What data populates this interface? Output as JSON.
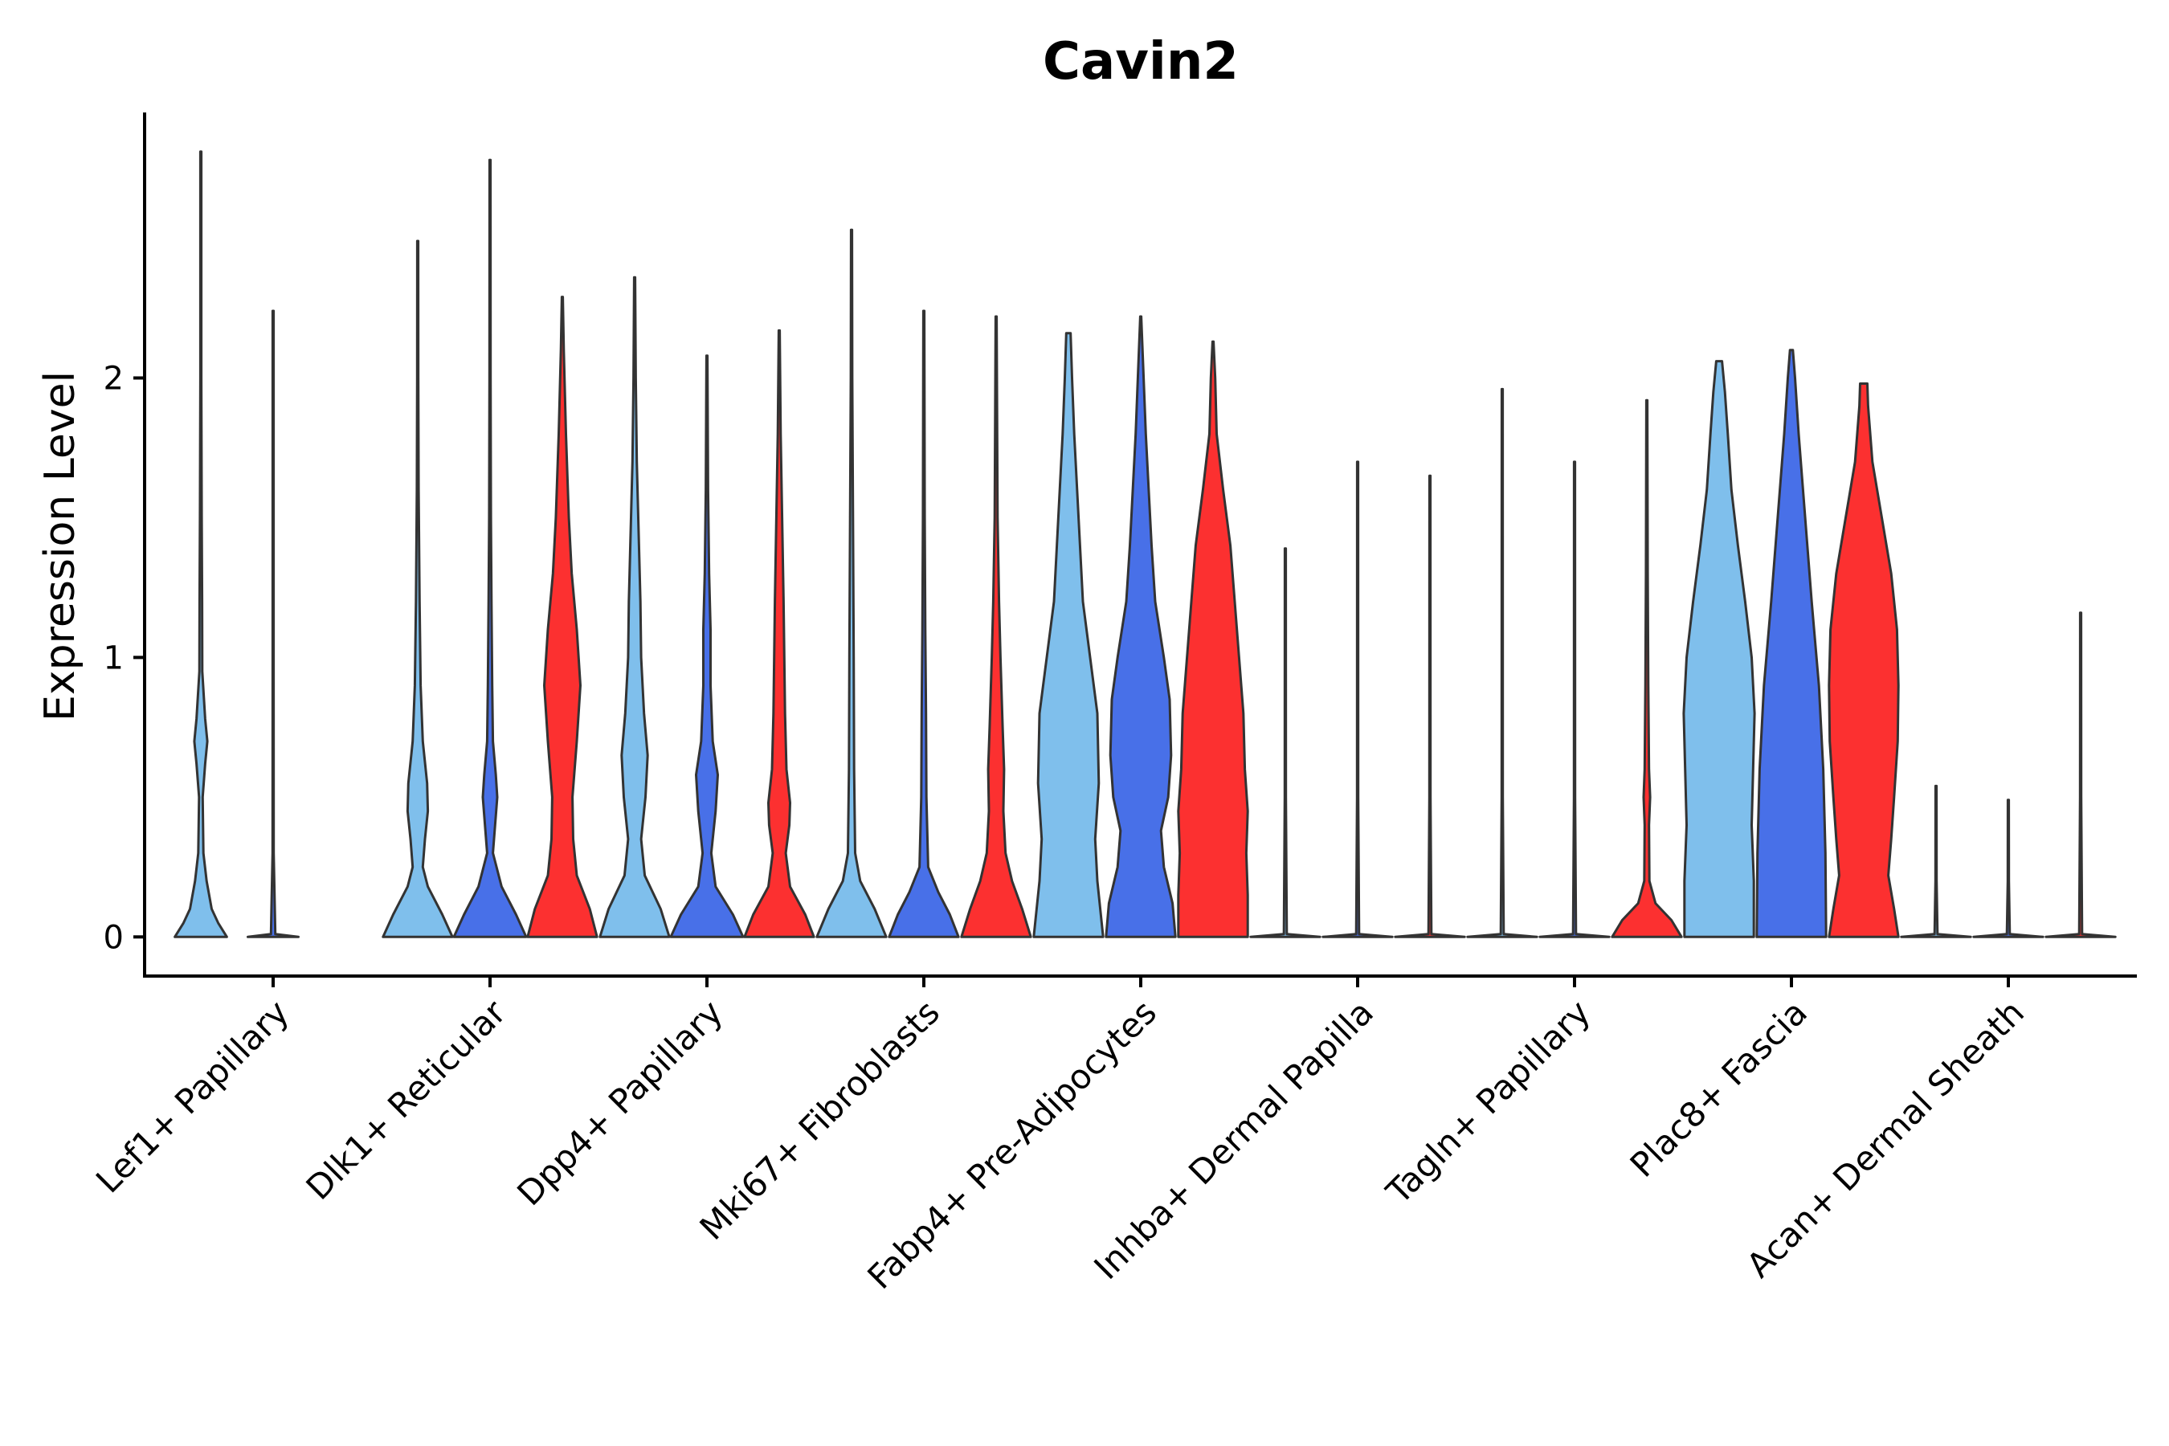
{
  "chart_data": {
    "type": "violin",
    "title": "Cavin2",
    "xlabel": "",
    "ylabel": "Expression Level",
    "ylim": [
      -0.14,
      2.95
    ],
    "yticks": [
      0,
      1,
      2
    ],
    "ytick_labels": [
      "0",
      "1",
      "2"
    ],
    "grid": false,
    "legend": "none",
    "categories": [
      "Lef1+ Papillary",
      "Dlk1+ Reticular",
      "Dpp4+ Papillary",
      "Mki67+ Fibroblasts",
      "Fabp4+ Pre-Adipocytes",
      "Inhba+ Dermal Papilla",
      "Tagln+ Papillary",
      "Plac8+ Fascia",
      "Acan+ Dermal Sheath"
    ],
    "series_colors": [
      "#7fbfec",
      "#4870e8",
      "#fc3030"
    ],
    "violins": [
      {
        "category": 0,
        "series": 0,
        "max": 2.81,
        "profile": [
          [
            0,
            0.36
          ],
          [
            0.05,
            0.24
          ],
          [
            0.1,
            0.15
          ],
          [
            0.2,
            0.08
          ],
          [
            0.3,
            0.035
          ],
          [
            0.5,
            0.025
          ],
          [
            0.62,
            0.06
          ],
          [
            0.7,
            0.09
          ],
          [
            0.78,
            0.06
          ],
          [
            0.95,
            0.02
          ],
          [
            1.2,
            0.018
          ],
          [
            1.5,
            0.012
          ],
          [
            2.0,
            0.007
          ],
          [
            2.5,
            0.004
          ],
          [
            2.81,
            0.0
          ]
        ]
      },
      {
        "category": 0,
        "series": 1,
        "max": 2.24,
        "profile": [
          [
            0,
            0.35
          ],
          [
            0.01,
            0.03
          ],
          [
            0.3,
            0.008
          ],
          [
            1.0,
            0.006
          ],
          [
            2.24,
            0.0
          ]
        ]
      },
      {
        "category": 1,
        "series": 0,
        "max": 2.49,
        "profile": [
          [
            0,
            0.48
          ],
          [
            0.08,
            0.34
          ],
          [
            0.18,
            0.14
          ],
          [
            0.25,
            0.07
          ],
          [
            0.35,
            0.1
          ],
          [
            0.45,
            0.14
          ],
          [
            0.55,
            0.13
          ],
          [
            0.7,
            0.07
          ],
          [
            0.9,
            0.04
          ],
          [
            1.2,
            0.025
          ],
          [
            1.6,
            0.012
          ],
          [
            2.0,
            0.008
          ],
          [
            2.49,
            0.0
          ]
        ]
      },
      {
        "category": 1,
        "series": 1,
        "max": 2.78,
        "profile": [
          [
            0,
            0.5
          ],
          [
            0.08,
            0.36
          ],
          [
            0.18,
            0.16
          ],
          [
            0.3,
            0.04
          ],
          [
            0.4,
            0.07
          ],
          [
            0.5,
            0.1
          ],
          [
            0.58,
            0.08
          ],
          [
            0.7,
            0.04
          ],
          [
            0.9,
            0.03
          ],
          [
            1.2,
            0.02
          ],
          [
            1.5,
            0.012
          ],
          [
            2.0,
            0.008
          ],
          [
            2.78,
            0.0
          ]
        ]
      },
      {
        "category": 1,
        "series": 2,
        "max": 2.29,
        "profile": [
          [
            0,
            0.48
          ],
          [
            0.1,
            0.38
          ],
          [
            0.22,
            0.2
          ],
          [
            0.35,
            0.15
          ],
          [
            0.5,
            0.14
          ],
          [
            0.7,
            0.2
          ],
          [
            0.9,
            0.25
          ],
          [
            1.1,
            0.2
          ],
          [
            1.3,
            0.13
          ],
          [
            1.5,
            0.09
          ],
          [
            1.8,
            0.05
          ],
          [
            2.1,
            0.02
          ],
          [
            2.29,
            0.0
          ]
        ]
      },
      {
        "category": 2,
        "series": 0,
        "max": 2.36,
        "profile": [
          [
            0,
            0.48
          ],
          [
            0.1,
            0.36
          ],
          [
            0.22,
            0.14
          ],
          [
            0.35,
            0.09
          ],
          [
            0.5,
            0.15
          ],
          [
            0.65,
            0.18
          ],
          [
            0.8,
            0.13
          ],
          [
            1.0,
            0.09
          ],
          [
            1.2,
            0.08
          ],
          [
            1.4,
            0.06
          ],
          [
            1.7,
            0.03
          ],
          [
            2.0,
            0.015
          ],
          [
            2.36,
            0.0
          ]
        ]
      },
      {
        "category": 2,
        "series": 1,
        "max": 2.08,
        "profile": [
          [
            0,
            0.5
          ],
          [
            0.08,
            0.36
          ],
          [
            0.18,
            0.12
          ],
          [
            0.3,
            0.06
          ],
          [
            0.45,
            0.12
          ],
          [
            0.58,
            0.15
          ],
          [
            0.7,
            0.08
          ],
          [
            0.9,
            0.05
          ],
          [
            1.1,
            0.05
          ],
          [
            1.3,
            0.03
          ],
          [
            1.6,
            0.015
          ],
          [
            2.08,
            0.0
          ]
        ]
      },
      {
        "category": 2,
        "series": 2,
        "max": 2.17,
        "profile": [
          [
            0,
            0.48
          ],
          [
            0.08,
            0.36
          ],
          [
            0.18,
            0.15
          ],
          [
            0.3,
            0.09
          ],
          [
            0.4,
            0.14
          ],
          [
            0.48,
            0.15
          ],
          [
            0.6,
            0.1
          ],
          [
            0.8,
            0.08
          ],
          [
            1.0,
            0.07
          ],
          [
            1.2,
            0.06
          ],
          [
            1.5,
            0.04
          ],
          [
            1.8,
            0.02
          ],
          [
            2.17,
            0.0
          ]
        ]
      },
      {
        "category": 3,
        "series": 0,
        "max": 2.53,
        "profile": [
          [
            0,
            0.48
          ],
          [
            0.1,
            0.32
          ],
          [
            0.2,
            0.12
          ],
          [
            0.3,
            0.05
          ],
          [
            0.6,
            0.035
          ],
          [
            1.0,
            0.03
          ],
          [
            1.5,
            0.02
          ],
          [
            2.0,
            0.01
          ],
          [
            2.53,
            0.0
          ]
        ]
      },
      {
        "category": 3,
        "series": 1,
        "max": 2.24,
        "profile": [
          [
            0,
            0.48
          ],
          [
            0.08,
            0.36
          ],
          [
            0.16,
            0.2
          ],
          [
            0.25,
            0.06
          ],
          [
            0.5,
            0.035
          ],
          [
            0.8,
            0.03
          ],
          [
            1.1,
            0.02
          ],
          [
            1.5,
            0.012
          ],
          [
            2.24,
            0.0
          ]
        ]
      },
      {
        "category": 3,
        "series": 2,
        "max": 2.22,
        "profile": [
          [
            0,
            0.48
          ],
          [
            0.1,
            0.36
          ],
          [
            0.2,
            0.22
          ],
          [
            0.3,
            0.13
          ],
          [
            0.45,
            0.1
          ],
          [
            0.6,
            0.11
          ],
          [
            0.75,
            0.09
          ],
          [
            1.0,
            0.06
          ],
          [
            1.2,
            0.04
          ],
          [
            1.5,
            0.02
          ],
          [
            2.22,
            0.0
          ]
        ]
      },
      {
        "category": 4,
        "series": 0,
        "max": 2.16,
        "profile": [
          [
            0,
            0.48
          ],
          [
            0.1,
            0.44
          ],
          [
            0.2,
            0.4
          ],
          [
            0.35,
            0.37
          ],
          [
            0.55,
            0.42
          ],
          [
            0.8,
            0.4
          ],
          [
            1.0,
            0.3
          ],
          [
            1.2,
            0.2
          ],
          [
            1.4,
            0.16
          ],
          [
            1.6,
            0.12
          ],
          [
            1.8,
            0.08
          ],
          [
            2.0,
            0.05
          ],
          [
            2.16,
            0.03
          ]
        ]
      },
      {
        "category": 4,
        "series": 1,
        "max": 2.22,
        "profile": [
          [
            0,
            0.48
          ],
          [
            0.12,
            0.44
          ],
          [
            0.25,
            0.32
          ],
          [
            0.38,
            0.28
          ],
          [
            0.5,
            0.38
          ],
          [
            0.65,
            0.42
          ],
          [
            0.85,
            0.4
          ],
          [
            1.0,
            0.32
          ],
          [
            1.2,
            0.2
          ],
          [
            1.4,
            0.15
          ],
          [
            1.6,
            0.11
          ],
          [
            1.8,
            0.07
          ],
          [
            2.0,
            0.04
          ],
          [
            2.22,
            0.0
          ]
        ]
      },
      {
        "category": 4,
        "series": 2,
        "max": 2.13,
        "profile": [
          [
            0,
            0.48
          ],
          [
            0.15,
            0.48
          ],
          [
            0.3,
            0.46
          ],
          [
            0.45,
            0.48
          ],
          [
            0.6,
            0.44
          ],
          [
            0.8,
            0.42
          ],
          [
            1.0,
            0.36
          ],
          [
            1.2,
            0.3
          ],
          [
            1.4,
            0.24
          ],
          [
            1.6,
            0.14
          ],
          [
            1.8,
            0.05
          ],
          [
            2.0,
            0.03
          ],
          [
            2.13,
            0.0
          ]
        ]
      },
      {
        "category": 5,
        "series": 0,
        "max": 1.39,
        "profile": [
          [
            0,
            0.48
          ],
          [
            0.01,
            0.02
          ],
          [
            0.5,
            0.008
          ],
          [
            1.39,
            0.0
          ]
        ]
      },
      {
        "category": 5,
        "series": 1,
        "max": 1.7,
        "profile": [
          [
            0,
            0.48
          ],
          [
            0.01,
            0.02
          ],
          [
            0.5,
            0.008
          ],
          [
            1.7,
            0.0
          ]
        ]
      },
      {
        "category": 5,
        "series": 2,
        "max": 1.65,
        "profile": [
          [
            0,
            0.48
          ],
          [
            0.01,
            0.02
          ],
          [
            0.5,
            0.008
          ],
          [
            1.65,
            0.0
          ]
        ]
      },
      {
        "category": 6,
        "series": 0,
        "max": 1.96,
        "profile": [
          [
            0,
            0.48
          ],
          [
            0.01,
            0.02
          ],
          [
            0.5,
            0.008
          ],
          [
            1.96,
            0.0
          ]
        ]
      },
      {
        "category": 6,
        "series": 1,
        "max": 1.7,
        "profile": [
          [
            0,
            0.48
          ],
          [
            0.01,
            0.02
          ],
          [
            0.5,
            0.008
          ],
          [
            1.7,
            0.0
          ]
        ]
      },
      {
        "category": 6,
        "series": 2,
        "max": 1.92,
        "profile": [
          [
            0,
            0.48
          ],
          [
            0.06,
            0.34
          ],
          [
            0.12,
            0.12
          ],
          [
            0.2,
            0.035
          ],
          [
            0.4,
            0.03
          ],
          [
            0.5,
            0.045
          ],
          [
            0.6,
            0.03
          ],
          [
            0.9,
            0.02
          ],
          [
            1.3,
            0.012
          ],
          [
            1.92,
            0.0
          ]
        ]
      },
      {
        "category": 7,
        "series": 0,
        "max": 2.06,
        "profile": [
          [
            0,
            0.48
          ],
          [
            0.2,
            0.48
          ],
          [
            0.4,
            0.45
          ],
          [
            0.6,
            0.47
          ],
          [
            0.8,
            0.49
          ],
          [
            1.0,
            0.45
          ],
          [
            1.2,
            0.36
          ],
          [
            1.4,
            0.26
          ],
          [
            1.6,
            0.17
          ],
          [
            1.8,
            0.12
          ],
          [
            1.95,
            0.08
          ],
          [
            2.06,
            0.04
          ]
        ]
      },
      {
        "category": 7,
        "series": 1,
        "max": 2.1,
        "profile": [
          [
            0,
            0.48
          ],
          [
            0.3,
            0.47
          ],
          [
            0.6,
            0.44
          ],
          [
            0.9,
            0.38
          ],
          [
            1.2,
            0.28
          ],
          [
            1.4,
            0.22
          ],
          [
            1.6,
            0.16
          ],
          [
            1.8,
            0.1
          ],
          [
            2.0,
            0.05
          ],
          [
            2.1,
            0.02
          ]
        ]
      },
      {
        "category": 7,
        "series": 2,
        "max": 1.98,
        "profile": [
          [
            0,
            0.48
          ],
          [
            0.1,
            0.42
          ],
          [
            0.22,
            0.34
          ],
          [
            0.35,
            0.38
          ],
          [
            0.5,
            0.42
          ],
          [
            0.7,
            0.47
          ],
          [
            0.9,
            0.48
          ],
          [
            1.1,
            0.46
          ],
          [
            1.3,
            0.38
          ],
          [
            1.5,
            0.25
          ],
          [
            1.7,
            0.12
          ],
          [
            1.9,
            0.06
          ],
          [
            1.98,
            0.05
          ]
        ]
      },
      {
        "category": 8,
        "series": 0,
        "max": 0.54,
        "profile": [
          [
            0,
            0.48
          ],
          [
            0.01,
            0.02
          ],
          [
            0.2,
            0.008
          ],
          [
            0.54,
            0.0
          ]
        ]
      },
      {
        "category": 8,
        "series": 1,
        "max": 0.49,
        "profile": [
          [
            0,
            0.48
          ],
          [
            0.01,
            0.02
          ],
          [
            0.2,
            0.008
          ],
          [
            0.49,
            0.0
          ]
        ]
      },
      {
        "category": 8,
        "series": 2,
        "max": 1.16,
        "profile": [
          [
            0,
            0.48
          ],
          [
            0.01,
            0.02
          ],
          [
            0.5,
            0.008
          ],
          [
            1.16,
            0.0
          ]
        ]
      }
    ]
  }
}
